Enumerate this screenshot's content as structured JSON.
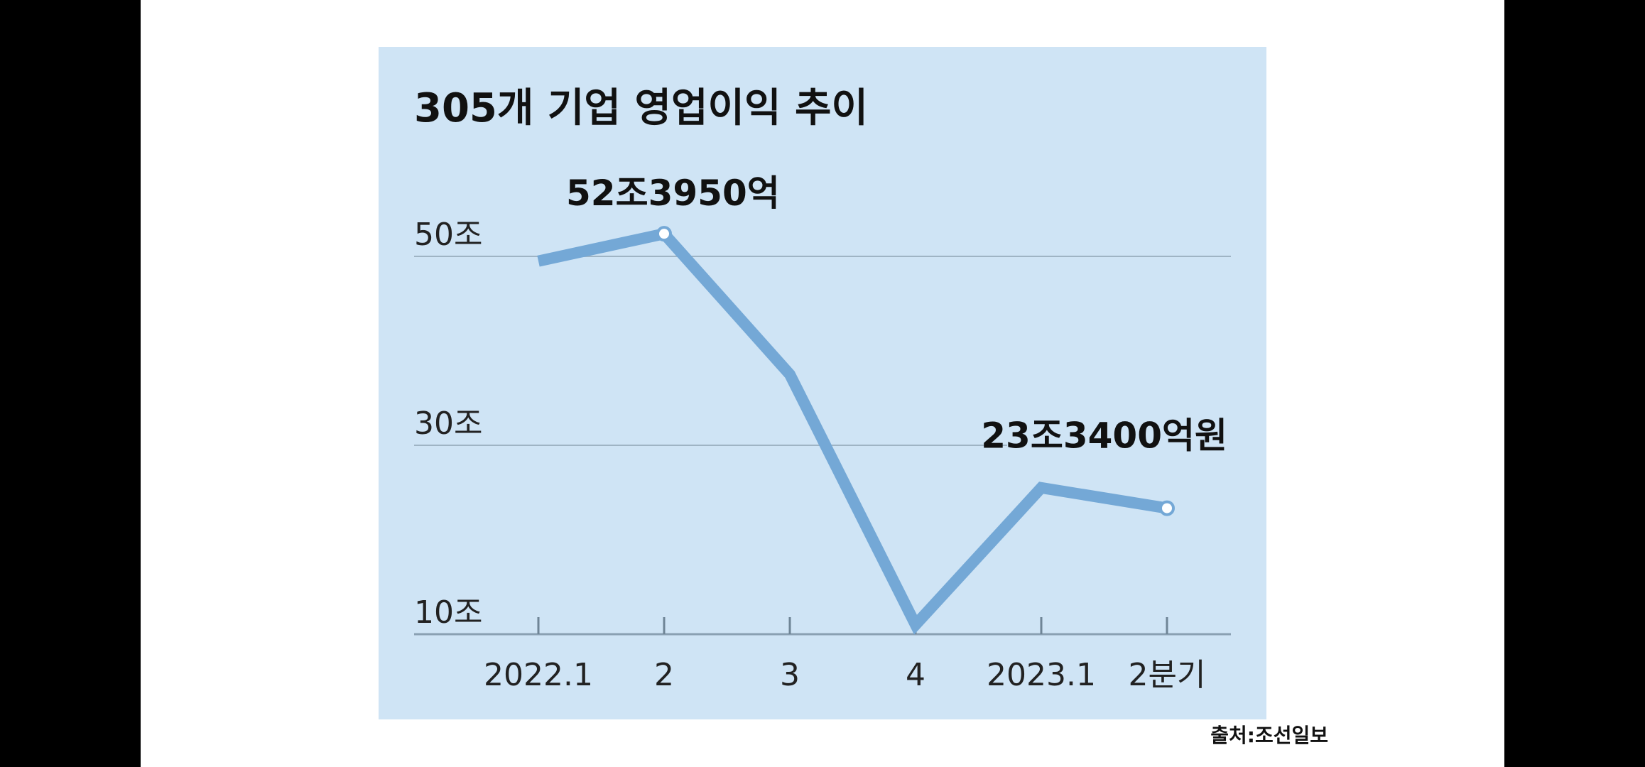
{
  "source": "출처:조선일보",
  "chart_data": {
    "type": "line",
    "title": "305개 기업 영업이익 추이",
    "categories": [
      "2022.1",
      "2",
      "3",
      "4",
      "2023.1",
      "2분기"
    ],
    "values": [
      49.5,
      52.395,
      37.5,
      11.0,
      25.5,
      23.34
    ],
    "ylim": [
      10,
      55
    ],
    "y_ticks": [
      {
        "value": 50,
        "label": "50조"
      },
      {
        "value": 30,
        "label": "30조"
      },
      {
        "value": 10,
        "label": "10조"
      }
    ],
    "grid": true,
    "annotations": [
      {
        "index": 1,
        "text": "52조3950억"
      },
      {
        "index": 5,
        "text": "23조3400억원"
      }
    ],
    "colors": {
      "line": "#74a8d6",
      "background": "#cfe4f5",
      "grid": "#9fb4c4",
      "marker_fill": "#ffffff"
    }
  }
}
